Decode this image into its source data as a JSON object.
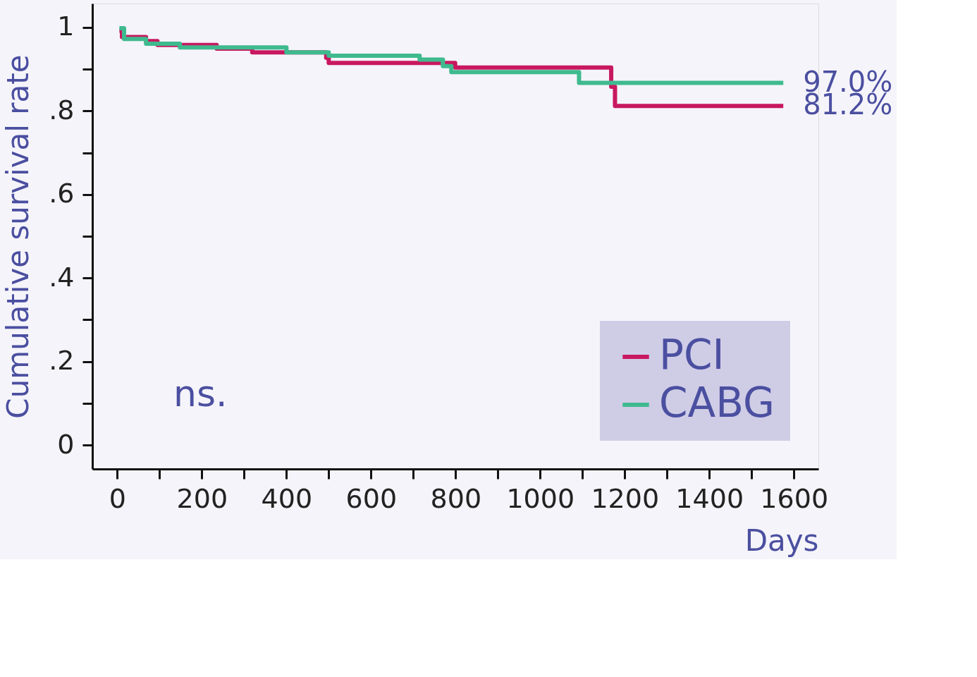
{
  "chart_data": {
    "type": "step",
    "xlabel": "Days",
    "ylabel": "Cumulative survival rate",
    "xlim": [
      -59,
      1658
    ],
    "ylim": [
      -0.057,
      1.057
    ],
    "xticks": [
      0,
      {
        "value": 100,
        "label": null
      },
      200,
      {
        "value": 300,
        "label": null
      },
      400,
      {
        "value": 500,
        "label": null
      },
      600,
      {
        "value": 700,
        "label": null
      },
      800,
      {
        "value": 900,
        "label": null
      },
      1000,
      {
        "value": 1100,
        "label": null
      },
      1200,
      {
        "value": 1300,
        "label": null
      },
      1400,
      {
        "value": 1500,
        "label": null
      },
      1600
    ],
    "yticks": [
      0,
      {
        "value": 0.1,
        "label": null
      },
      {
        "value": 0.2,
        "label": ".2"
      },
      {
        "value": 0.3,
        "label": null
      },
      {
        "value": 0.4,
        "label": ".4"
      },
      {
        "value": 0.5,
        "label": null
      },
      {
        "value": 0.6,
        "label": ".6"
      },
      {
        "value": 0.7,
        "label": null
      },
      {
        "value": 0.8,
        "label": ".8"
      },
      {
        "value": 0.9,
        "label": null
      },
      1
    ],
    "grid": false,
    "legend": "bottom right",
    "line_style": "solid",
    "marker": "none",
    "series": [
      {
        "name": "PCI",
        "color": "#c8185f",
        "x": [
          5,
          11,
          68,
          95,
          235,
          319,
          494,
          500,
          799,
          1168,
          1177,
          1575
        ],
        "values": [
          0.992,
          0.977,
          0.967,
          0.958,
          0.949,
          0.94,
          0.927,
          0.915,
          0.904,
          0.858,
          0.812,
          0.812
        ]
      },
      {
        "name": "CABG",
        "color": "#3fba8f",
        "x": [
          5,
          16,
          68,
          148,
          400,
          500,
          715,
          770,
          790,
          1092,
          1575
        ],
        "values": [
          0.998,
          0.972,
          0.961,
          0.952,
          0.94,
          0.932,
          0.923,
          0.907,
          0.893,
          0.867,
          0.867
        ]
      }
    ],
    "annotations": [
      {
        "text": "97.0%",
        "x": 1575,
        "y": 0.867
      },
      {
        "text": "81.2%",
        "x": 1575,
        "y": 0.812
      },
      "ns."
    ]
  }
}
